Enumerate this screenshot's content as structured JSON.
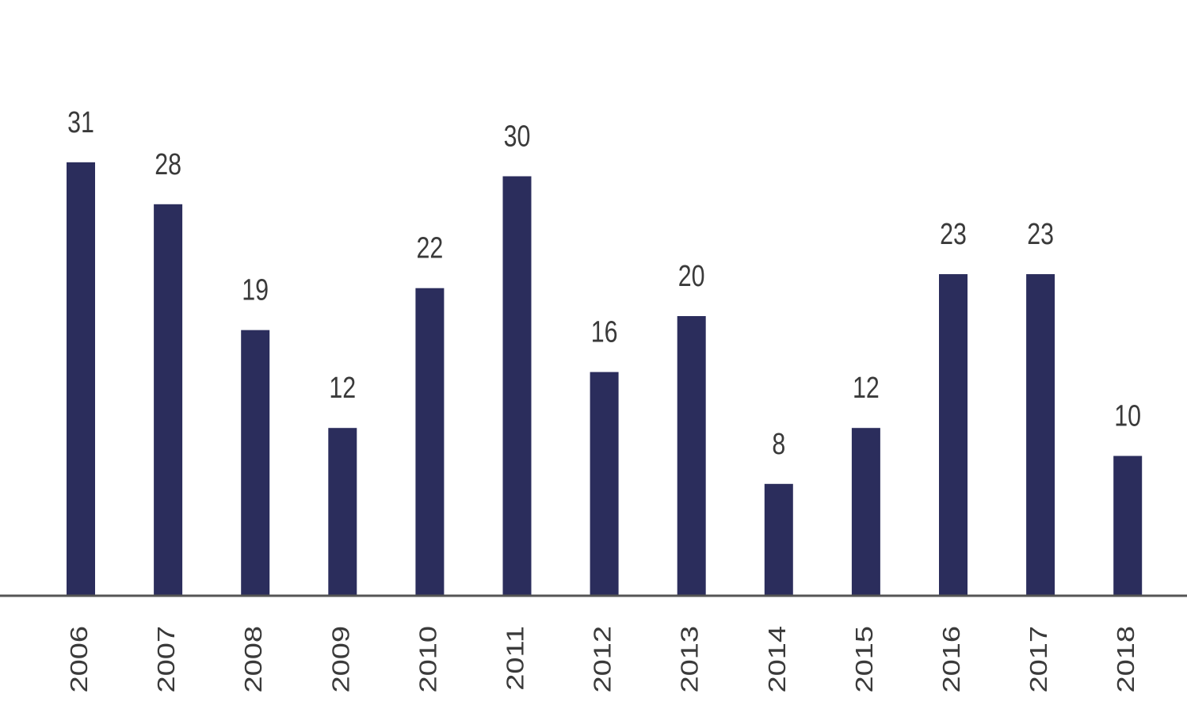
{
  "chart_data": {
    "type": "bar",
    "categories": [
      "2006",
      "2007",
      "2008",
      "2009",
      "2010",
      "2011",
      "2012",
      "2013",
      "2014",
      "2015",
      "2016",
      "2017",
      "2018"
    ],
    "values": [
      31,
      28,
      19,
      12,
      22,
      30,
      16,
      20,
      8,
      12,
      23,
      23,
      10
    ],
    "color": "#2b2d5c"
  }
}
